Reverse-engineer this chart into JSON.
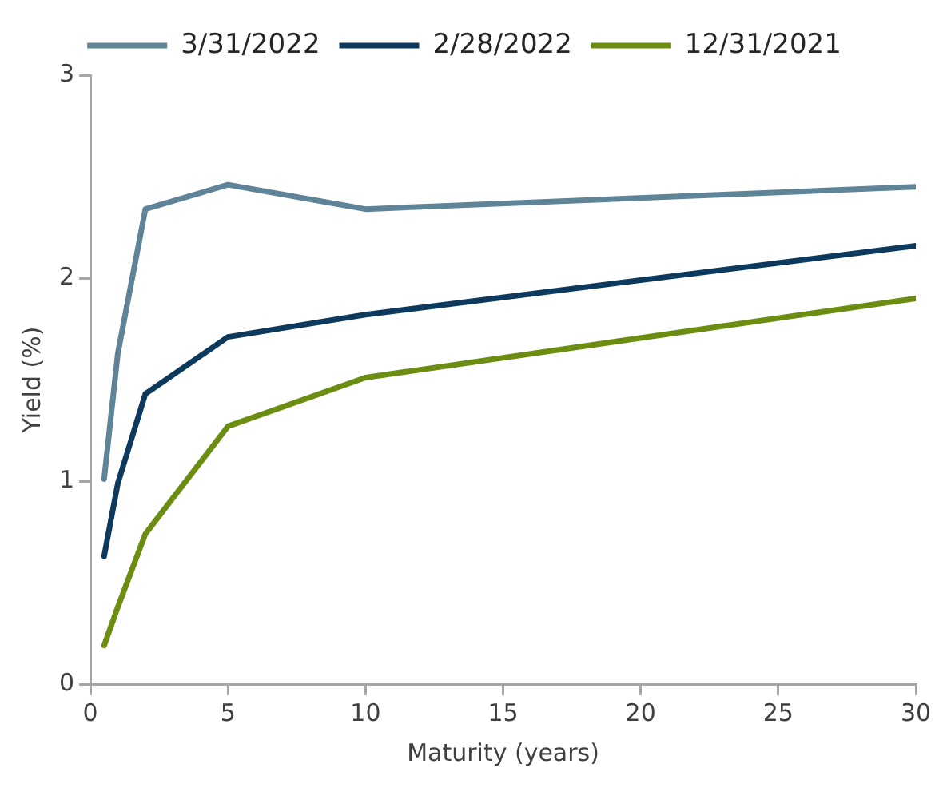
{
  "chart_data": {
    "type": "line",
    "xlabel": "Maturity (years)",
    "ylabel": "Yield (%)",
    "x": [
      0.5,
      1,
      2,
      5,
      10,
      30
    ],
    "series": [
      {
        "name": "3/31/2022",
        "color": "#5f8397",
        "values": [
          1.01,
          1.63,
          2.34,
          2.46,
          2.34,
          2.45
        ]
      },
      {
        "name": "2/28/2022",
        "color": "#0d3a5c",
        "values": [
          0.63,
          0.99,
          1.43,
          1.71,
          1.82,
          2.16
        ]
      },
      {
        "name": "12/31/2021",
        "color": "#6b8e12",
        "values": [
          0.19,
          0.38,
          0.74,
          1.27,
          1.51,
          1.9
        ]
      }
    ],
    "xlim": [
      0,
      30
    ],
    "xticks": [
      0,
      5,
      10,
      15,
      20,
      25,
      30
    ],
    "ylim": [
      0,
      3
    ],
    "yticks": [
      0,
      1,
      2,
      3
    ],
    "grid": false,
    "legend": "top",
    "marker": "none",
    "line_style": "solid"
  }
}
